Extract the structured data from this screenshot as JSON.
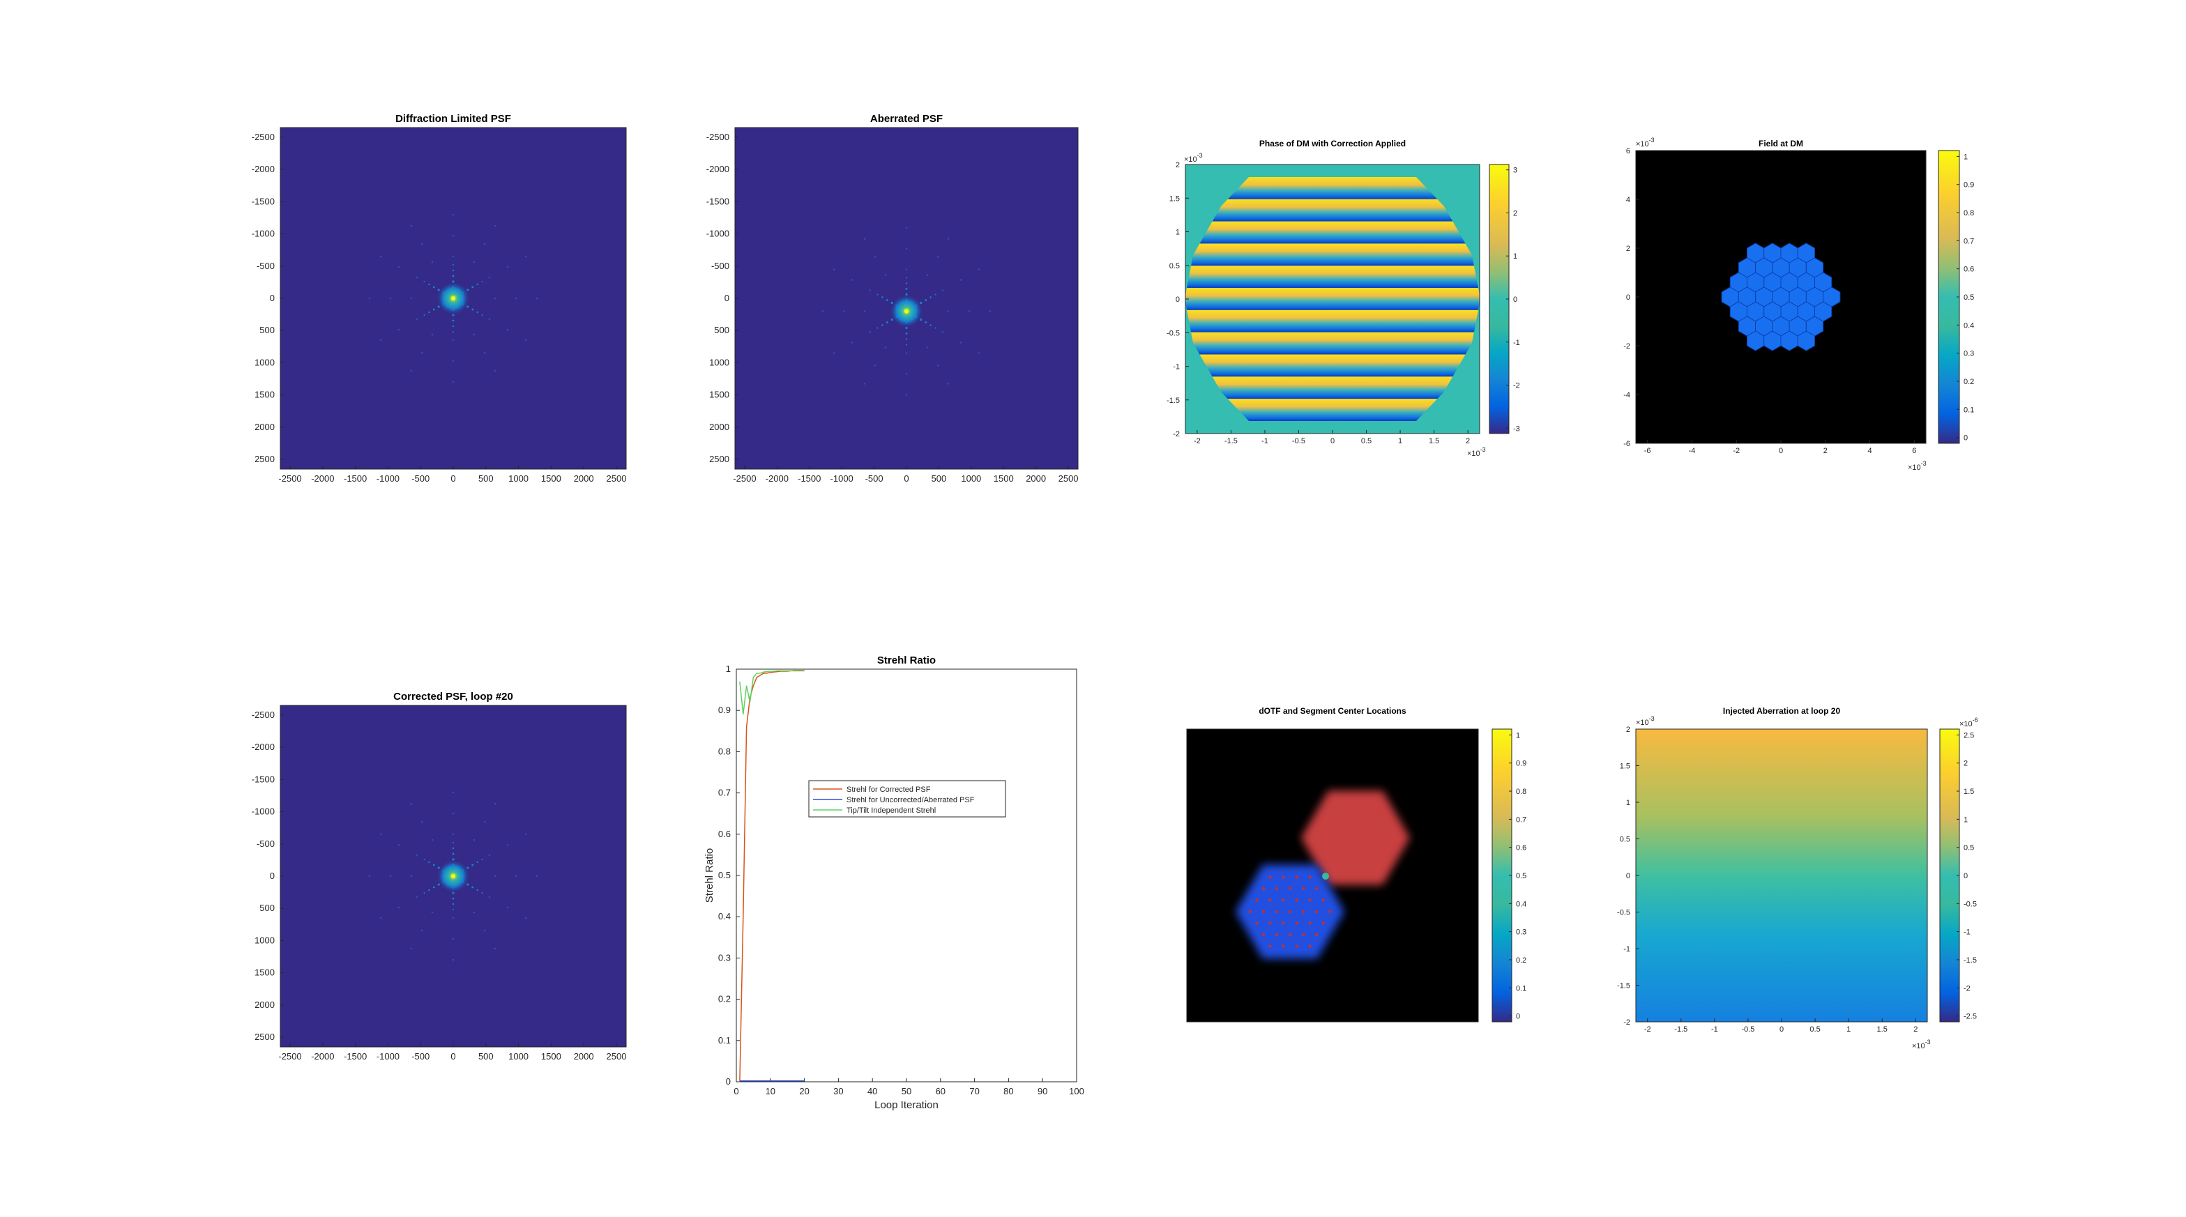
{
  "colors": {
    "parula_bg": "#352a87",
    "black": "#000000",
    "corrected": "#d95319",
    "uncorrected": "#3050d0",
    "tiptilt": "#60d060",
    "red_segment": "#c84040",
    "blue_segment": "#2050e0",
    "segment_face": "#1870f0"
  },
  "chart_data": [
    {
      "id": "p1",
      "type": "heatmap",
      "title": "Diffraction Limited PSF",
      "xticks": [
        "-2500",
        "-2000",
        "-1500",
        "-1000",
        "-500",
        "0",
        "500",
        "1000",
        "1500",
        "2000",
        "2500"
      ],
      "yticks": [
        "-2500",
        "-2000",
        "-1500",
        "-1000",
        "-500",
        "0",
        "500",
        "1000",
        "1500",
        "2000",
        "2500"
      ],
      "xlim": [
        -2650,
        2650
      ],
      "ylim": [
        -2650,
        2650
      ],
      "y_reversed": true,
      "peak": [
        0,
        0
      ],
      "colormap": "parula"
    },
    {
      "id": "p2",
      "type": "heatmap",
      "title": "Aberrated PSF",
      "xticks": [
        "-2500",
        "-2000",
        "-1500",
        "-1000",
        "-500",
        "0",
        "500",
        "1000",
        "1500",
        "2000",
        "2500"
      ],
      "yticks": [
        "-2500",
        "-2000",
        "-1500",
        "-1000",
        "-500",
        "0",
        "500",
        "1000",
        "1500",
        "2000",
        "2500"
      ],
      "xlim": [
        -2650,
        2650
      ],
      "ylim": [
        -2650,
        2650
      ],
      "y_reversed": true,
      "peak": [
        0,
        200
      ],
      "colormap": "parula"
    },
    {
      "id": "p3",
      "type": "heatmap",
      "title": "Phase of DM with Correction Applied",
      "xticks": [
        "-2",
        "-1.5",
        "-1",
        "-0.5",
        "0",
        "0.5",
        "1",
        "1.5",
        "2"
      ],
      "yticks": [
        "2",
        "1.5",
        "1",
        "0.5",
        "0",
        "-0.5",
        "-1",
        "-1.5",
        "-2"
      ],
      "x_exponent": "×10",
      "x_exponent_power": "-3",
      "y_exponent": "×10",
      "y_exponent_power": "-3",
      "colorbar_ticks": [
        "3",
        "2",
        "1",
        "0",
        "-1",
        "-2",
        "-3"
      ],
      "clim": [
        -3.14,
        3.14
      ],
      "colormap": "parula"
    },
    {
      "id": "p4",
      "type": "heatmap",
      "title": "Field at DM",
      "xticks": [
        "-6",
        "-4",
        "-2",
        "0",
        "2",
        "4",
        "6"
      ],
      "yticks": [
        "6",
        "4",
        "2",
        "0",
        "-2",
        "-4",
        "-6"
      ],
      "x_exponent": "×10",
      "x_exponent_power": "-3",
      "y_exponent": "×10",
      "y_exponent_power": "-3",
      "colorbar_ticks": [
        "1",
        "0.9",
        "0.8",
        "0.7",
        "0.6",
        "0.5",
        "0.4",
        "0.3",
        "0.2",
        "0.1",
        "0"
      ],
      "clim": [
        0,
        1
      ],
      "segments": 37,
      "colormap": "parula"
    },
    {
      "id": "p5",
      "type": "heatmap",
      "title": "Corrected PSF, loop #20",
      "xticks": [
        "-2500",
        "-2000",
        "-1500",
        "-1000",
        "-500",
        "0",
        "500",
        "1000",
        "1500",
        "2000",
        "2500"
      ],
      "yticks": [
        "-2500",
        "-2000",
        "-1500",
        "-1000",
        "-500",
        "0",
        "500",
        "1000",
        "1500",
        "2000",
        "2500"
      ],
      "xlim": [
        -2650,
        2650
      ],
      "ylim": [
        -2650,
        2650
      ],
      "y_reversed": true,
      "peak": [
        0,
        0
      ],
      "colormap": "parula"
    },
    {
      "id": "p6",
      "type": "line",
      "title": "Strehl Ratio",
      "xlabel": "Loop Iteration",
      "ylabel": "Strehl Ratio",
      "xlim": [
        0,
        100
      ],
      "ylim": [
        0,
        1
      ],
      "xticks": [
        "0",
        "10",
        "20",
        "30",
        "40",
        "50",
        "60",
        "70",
        "80",
        "90",
        "100"
      ],
      "yticks": [
        "0",
        "0.1",
        "0.2",
        "0.3",
        "0.4",
        "0.5",
        "0.6",
        "0.7",
        "0.8",
        "0.9",
        "1"
      ],
      "legend_position": "center",
      "series": [
        {
          "name": "Strehl for Corrected PSF",
          "color_key": "corrected",
          "x": [
            1,
            2,
            3,
            4,
            5,
            6,
            7,
            8,
            9,
            10,
            11,
            12,
            13,
            14,
            15,
            16,
            17,
            18,
            19,
            20
          ],
          "y": [
            0.002,
            0.4,
            0.86,
            0.93,
            0.96,
            0.98,
            0.985,
            0.99,
            0.99,
            0.992,
            0.993,
            0.994,
            0.995,
            0.995,
            0.995,
            0.996,
            0.996,
            0.996,
            0.996,
            0.996
          ]
        },
        {
          "name": "Strehl for Uncorrected/Aberrated PSF",
          "color_key": "uncorrected",
          "x": [
            1,
            2,
            3,
            4,
            5,
            6,
            7,
            8,
            9,
            10,
            11,
            12,
            13,
            14,
            15,
            16,
            17,
            18,
            19,
            20
          ],
          "y": [
            0.002,
            0.002,
            0.002,
            0.002,
            0.002,
            0.002,
            0.002,
            0.002,
            0.002,
            0.002,
            0.002,
            0.002,
            0.002,
            0.002,
            0.002,
            0.002,
            0.002,
            0.002,
            0.002,
            0.002
          ]
        },
        {
          "name": "Tip/Tilt Independent Strehl",
          "color_key": "tiptilt",
          "x": [
            1,
            2,
            3,
            4,
            5,
            6,
            7,
            8,
            9,
            10,
            11,
            12,
            13,
            14,
            15,
            16,
            17,
            18,
            19,
            20
          ],
          "y": [
            0.97,
            0.89,
            0.96,
            0.92,
            0.98,
            0.99,
            0.99,
            0.993,
            0.994,
            0.995,
            0.995,
            0.996,
            0.996,
            0.996,
            0.996,
            0.996,
            0.997,
            0.997,
            0.997,
            0.997
          ]
        }
      ]
    },
    {
      "id": "p7",
      "type": "heatmap",
      "title": "dOTF and Segment Center Locations",
      "colorbar_ticks": [
        "1",
        "0.9",
        "0.8",
        "0.7",
        "0.6",
        "0.5",
        "0.4",
        "0.3",
        "0.2",
        "0.1",
        "0"
      ],
      "clim": [
        0,
        1
      ],
      "colormap": "parula"
    },
    {
      "id": "p8",
      "type": "heatmap",
      "title": "Injected Aberration at loop 20",
      "xticks": [
        "-2",
        "-1.5",
        "-1",
        "-0.5",
        "0",
        "0.5",
        "1",
        "1.5",
        "2"
      ],
      "yticks": [
        "2",
        "1.5",
        "1",
        "0.5",
        "0",
        "-0.5",
        "-1",
        "-1.5",
        "-2"
      ],
      "x_exponent": "×10",
      "x_exponent_power": "-3",
      "y_exponent": "×10",
      "y_exponent_power": "-3",
      "colorbar_ticks": [
        "2.5",
        "2",
        "1.5",
        "1",
        "0.5",
        "0",
        "-0.5",
        "-1",
        "-1.5",
        "-2",
        "-2.5"
      ],
      "colorbar_exponent": "×10",
      "colorbar_exponent_power": "-6",
      "clim": [
        -2.5,
        2.5
      ],
      "colormap": "parula"
    }
  ]
}
